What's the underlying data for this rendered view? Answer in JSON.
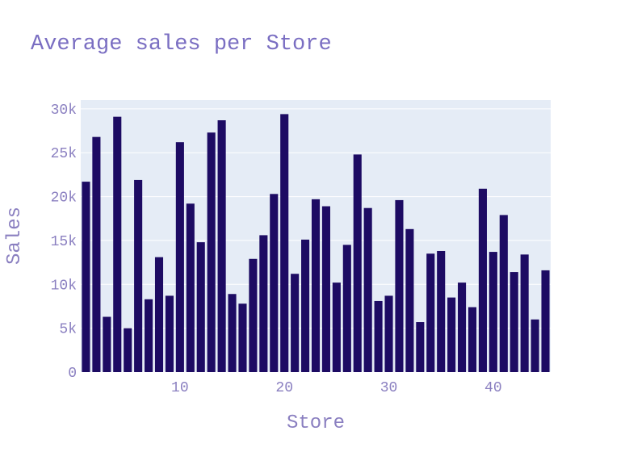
{
  "chart_data": {
    "type": "bar",
    "title": "Average sales per Store",
    "xlabel": "Store",
    "ylabel": "Sales",
    "x": [
      1,
      2,
      3,
      4,
      5,
      6,
      7,
      8,
      9,
      10,
      11,
      12,
      13,
      14,
      15,
      16,
      17,
      18,
      19,
      20,
      21,
      22,
      23,
      24,
      25,
      26,
      27,
      28,
      29,
      30,
      31,
      32,
      33,
      34,
      35,
      36,
      37,
      38,
      39,
      40,
      41,
      42,
      43,
      44,
      45
    ],
    "values": [
      21700,
      26800,
      6300,
      29100,
      5000,
      21900,
      8300,
      13100,
      8700,
      26200,
      19200,
      14800,
      27300,
      28700,
      8900,
      7800,
      12900,
      15600,
      20300,
      29400,
      11200,
      15100,
      19700,
      18900,
      10200,
      14500,
      24800,
      18700,
      8100,
      8700,
      19600,
      16300,
      5700,
      13500,
      13800,
      8500,
      10200,
      7400,
      20900,
      13700,
      17900,
      11400,
      13400,
      6000,
      11600
    ],
    "ylim": [
      0,
      31000
    ],
    "xlim": [
      0.5,
      45.5
    ],
    "x_ticks": [
      10,
      20,
      30,
      40
    ],
    "x_tick_labels": [
      "10",
      "20",
      "30",
      "40"
    ],
    "y_ticks": [
      0,
      5000,
      10000,
      15000,
      20000,
      25000,
      30000
    ],
    "y_tick_labels": [
      "0",
      "5k",
      "10k",
      "15k",
      "20k",
      "25k",
      "30k"
    ],
    "grid": true,
    "colors": {
      "bar": "#1d0b63",
      "plot_bg": "#e5ecf6",
      "grid": "#ffffff",
      "text": "#8a7fc0",
      "title": "#7a6ec2"
    }
  }
}
